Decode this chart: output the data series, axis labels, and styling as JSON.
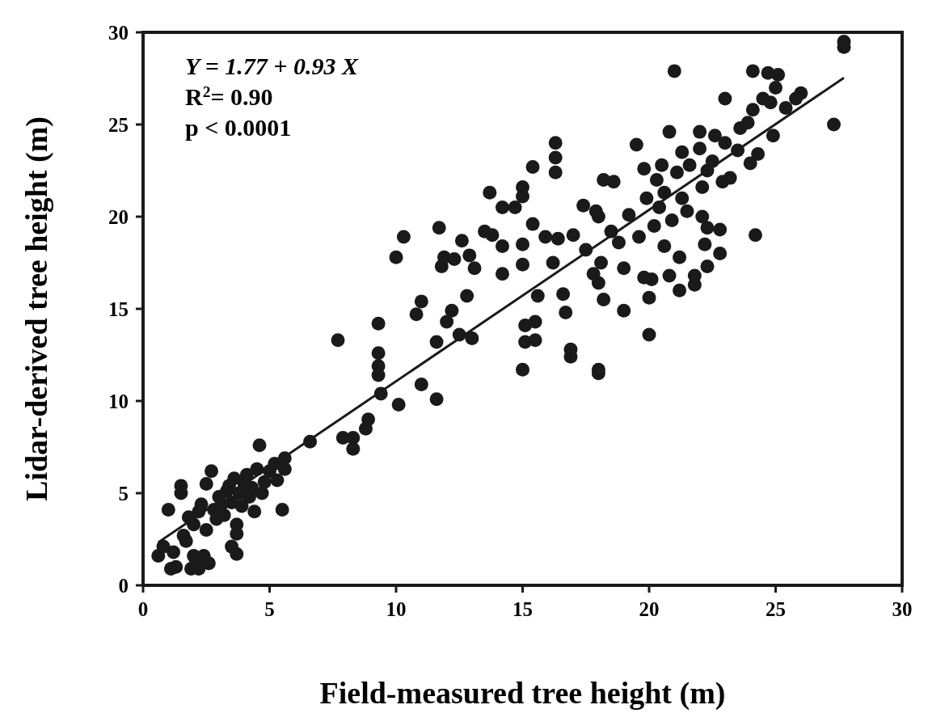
{
  "chart_data": {
    "type": "scatter",
    "xlabel": "Field-measured tree height (m)",
    "ylabel": "Lidar-derived tree height (m)",
    "xlim": [
      0,
      30
    ],
    "ylim": [
      0,
      30
    ],
    "xticks": [
      0,
      5,
      10,
      15,
      20,
      25,
      30
    ],
    "yticks": [
      0,
      5,
      10,
      15,
      20,
      25,
      30
    ],
    "grid": false,
    "annotations": [
      "Y = 1.77 + 0.93 X",
      "R$^{2}$= 0.90",
      "p < 0.0001"
    ],
    "series": [
      {
        "color": "#1a1a1a",
        "marker": "circle",
        "x": [
          0.6,
          0.8,
          1.0,
          1.1,
          1.3,
          1.2,
          1.5,
          1.5,
          1.6,
          1.7,
          1.8,
          1.9,
          2.0,
          2.1,
          2.2,
          2.0,
          2.2,
          2.3,
          2.4,
          2.5,
          2.5,
          2.6,
          2.7,
          2.8,
          2.9,
          3.0,
          3.1,
          3.2,
          3.3,
          3.4,
          3.5,
          3.5,
          3.6,
          3.7,
          3.7,
          3.7,
          3.8,
          3.9,
          4.0,
          4.1,
          4.2,
          4.3,
          4.4,
          4.5,
          4.6,
          4.7,
          4.8,
          5.0,
          5.2,
          5.3,
          5.5,
          5.6,
          5.6,
          6.6,
          7.7,
          7.9,
          8.3,
          8.3,
          8.8,
          8.9,
          9.3,
          9.3,
          9.3,
          9.3,
          9.4,
          10.1,
          10.0,
          10.3,
          10.8,
          11.0,
          11.0,
          11.6,
          11.6,
          11.7,
          11.8,
          11.9,
          12.0,
          12.2,
          12.3,
          12.5,
          12.6,
          12.8,
          12.9,
          13.0,
          13.1,
          13.5,
          13.7,
          13.8,
          14.2,
          14.2,
          14.2,
          14.7,
          15.0,
          15.0,
          15.0,
          15.0,
          15.1,
          15.1,
          15.0,
          15.4,
          15.4,
          15.5,
          15.5,
          15.6,
          15.9,
          16.2,
          16.3,
          16.3,
          16.3,
          16.4,
          16.6,
          16.7,
          16.9,
          16.9,
          17.0,
          17.4,
          17.5,
          17.9,
          18.0,
          18.0,
          17.8,
          18.0,
          18.1,
          18.2,
          18.0,
          18.2,
          18.6,
          18.5,
          18.8,
          19.0,
          19.0,
          19.2,
          19.5,
          19.6,
          19.8,
          19.8,
          19.9,
          20.0,
          20.0,
          20.1,
          20.2,
          20.3,
          20.4,
          20.5,
          20.6,
          20.6,
          20.8,
          20.8,
          20.9,
          21.0,
          21.1,
          21.2,
          21.2,
          21.3,
          21.3,
          21.5,
          21.6,
          21.8,
          21.8,
          22.0,
          22.0,
          22.1,
          22.1,
          22.2,
          22.3,
          22.3,
          22.3,
          22.5,
          22.6,
          22.8,
          22.8,
          22.9,
          23.0,
          23.0,
          23.2,
          23.5,
          23.6,
          23.9,
          24.0,
          24.1,
          24.1,
          24.2,
          24.3,
          24.5,
          24.7,
          24.8,
          24.9,
          25.0,
          25.1,
          25.4,
          25.8,
          26.0,
          27.3,
          27.7,
          27.7
        ],
        "values": [
          1.6,
          2.1,
          4.1,
          0.9,
          1.0,
          1.8,
          5.4,
          5.0,
          2.7,
          2.4,
          3.7,
          0.9,
          1.6,
          1.3,
          0.9,
          3.3,
          4.0,
          4.4,
          1.6,
          5.5,
          3.0,
          1.2,
          6.2,
          4.1,
          3.6,
          4.8,
          4.4,
          3.8,
          5.1,
          5.4,
          4.5,
          2.1,
          5.8,
          2.8,
          1.7,
          3.3,
          5.0,
          4.3,
          5.5,
          6.0,
          4.8,
          5.3,
          4.0,
          6.3,
          7.6,
          5.0,
          5.6,
          6.2,
          6.6,
          5.7,
          4.1,
          6.3,
          6.9,
          7.8,
          13.3,
          8.0,
          7.4,
          8.0,
          8.5,
          9.0,
          14.2,
          12.6,
          11.9,
          11.4,
          10.4,
          9.8,
          17.8,
          18.9,
          14.7,
          15.4,
          10.9,
          13.2,
          10.1,
          19.4,
          17.3,
          17.8,
          14.3,
          14.9,
          17.7,
          13.6,
          18.7,
          15.7,
          17.9,
          13.4,
          17.2,
          19.2,
          21.3,
          19.0,
          18.4,
          20.5,
          16.9,
          20.5,
          21.6,
          21.1,
          18.5,
          17.4,
          14.1,
          13.2,
          11.7,
          22.7,
          19.6,
          13.3,
          14.3,
          15.7,
          18.9,
          17.5,
          24.0,
          23.2,
          22.4,
          18.8,
          15.8,
          14.8,
          12.8,
          12.4,
          19.0,
          20.6,
          18.2,
          20.3,
          11.5,
          11.7,
          16.9,
          16.4,
          17.5,
          15.5,
          20.0,
          22.0,
          21.9,
          19.2,
          18.6,
          14.9,
          17.2,
          20.1,
          23.9,
          18.9,
          22.6,
          16.7,
          21.0,
          15.6,
          13.6,
          16.6,
          19.5,
          22.0,
          20.5,
          22.8,
          18.4,
          21.3,
          24.6,
          16.8,
          19.8,
          27.9,
          22.4,
          17.8,
          16.0,
          23.5,
          21.0,
          20.3,
          22.8,
          16.3,
          16.8,
          24.6,
          23.7,
          21.6,
          20.0,
          18.5,
          17.3,
          19.4,
          22.5,
          23.0,
          24.4,
          19.3,
          18.0,
          21.9,
          26.4,
          24.0,
          22.1,
          23.6,
          24.8,
          25.1,
          22.9,
          27.9,
          25.8,
          19.0,
          23.4,
          26.4,
          27.8,
          26.2,
          24.4,
          27.0,
          27.7,
          25.9,
          26.4,
          26.7,
          25.0,
          29.5,
          29.2
        ]
      },
      {
        "type": "line",
        "color": "#1a1a1a",
        "marker": "none",
        "line_style": "solid",
        "x": [
          0.6,
          27.7
        ],
        "values": [
          2.33,
          27.53
        ]
      }
    ]
  }
}
